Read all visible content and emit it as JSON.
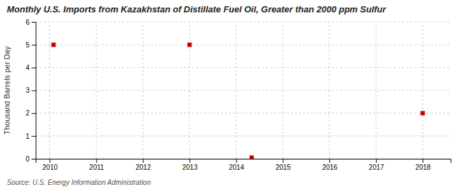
{
  "chart_data": {
    "type": "scatter",
    "title": "Monthly U.S. Imports from Kazakhstan of Distillate Fuel Oil, Greater than 2000 ppm Sulfur",
    "y_label": "Thousand Barrels per Day",
    "annotations": [
      "Source: U.S. Energy Information Administration"
    ],
    "x": [
      2010.083,
      2013.0,
      2014.333,
      2018.0
    ],
    "values": [
      5.0,
      5.0,
      0.05,
      2.0
    ],
    "color": "#cc0000",
    "marker": "square",
    "xlim": [
      2009.7,
      2018.6
    ],
    "ylim": [
      0,
      6
    ],
    "xticks": [
      2010,
      2011,
      2012,
      2013,
      2014,
      2015,
      2016,
      2017,
      2018
    ],
    "yticks": [
      0,
      1,
      2,
      3,
      4,
      5,
      6
    ],
    "grid": true
  }
}
